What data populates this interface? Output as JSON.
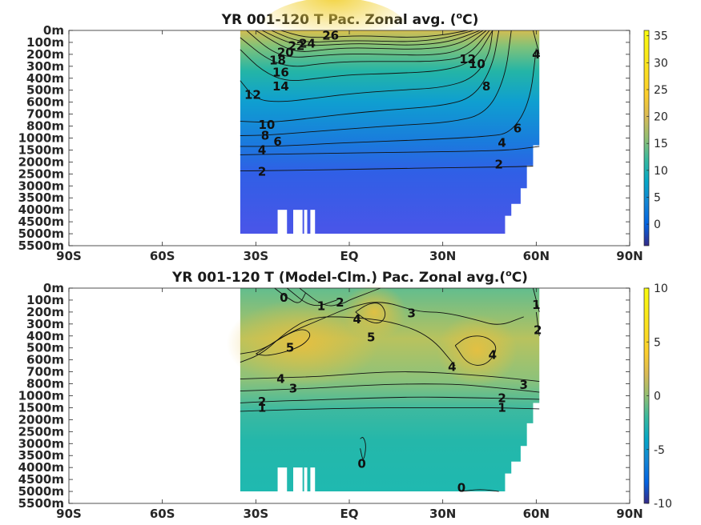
{
  "chart_data": [
    {
      "type": "heatmap",
      "title": "YR 001-120 T Pac. Zonal avg. (",
      "title_sup": "o",
      "title_tail": "C)",
      "x_ticks": [
        "90S",
        "60S",
        "30S",
        "EQ",
        "30N",
        "60N",
        "90N"
      ],
      "x_values": [
        -90,
        -60,
        -30,
        0,
        30,
        60,
        90
      ],
      "y_ticks": [
        "0m",
        "100m",
        "200m",
        "300m",
        "400m",
        "500m",
        "600m",
        "700m",
        "800m",
        "1000m",
        "1500m",
        "2000m",
        "2500m",
        "3000m",
        "3500m",
        "4000m",
        "4500m",
        "5000m",
        "5500m"
      ],
      "data_lat_range": [
        -35,
        61
      ],
      "colorbar": {
        "min": -4,
        "max": 36,
        "ticks": [
          0,
          5,
          10,
          15,
          20,
          25,
          30,
          35
        ]
      },
      "contours": [
        {
          "level": 26,
          "lat": [
            -22,
            -15,
            -8,
            -2,
            4,
            10,
            20,
            30,
            38
          ],
          "depth_index": [
            0,
            0.55,
            0.6,
            0.5,
            0.45,
            0.5,
            0.6,
            0.4,
            0
          ]
        },
        {
          "level": 24,
          "lat": [
            -25,
            -18,
            -12,
            -5,
            2,
            10,
            20,
            30,
            40
          ],
          "depth_index": [
            0,
            0.8,
            1.0,
            0.9,
            0.85,
            0.9,
            0.95,
            0.7,
            0
          ]
        },
        {
          "level": 22,
          "lat": [
            -28,
            -20,
            -14,
            -6,
            2,
            10,
            20,
            32,
            42
          ],
          "depth_index": [
            0,
            1.0,
            1.3,
            1.2,
            1.1,
            1.15,
            1.25,
            1.0,
            0
          ]
        },
        {
          "level": 20,
          "lat": [
            -30,
            -22,
            -16,
            -8,
            0,
            10,
            22,
            34,
            43
          ],
          "depth_index": [
            0,
            1.3,
            1.85,
            1.6,
            1.45,
            1.5,
            1.6,
            1.3,
            0
          ]
        },
        {
          "level": 18,
          "lat": [
            -33,
            -25,
            -18,
            -10,
            0,
            12,
            26,
            36,
            44
          ],
          "depth_index": [
            0,
            1.8,
            2.3,
            2.1,
            1.95,
            2.0,
            2.1,
            1.7,
            0
          ]
        },
        {
          "level": 16,
          "lat": [
            -35,
            -26,
            -18,
            -10,
            0,
            14,
            28,
            38,
            45
          ],
          "depth_index": [
            0.6,
            2.5,
            3.1,
            2.8,
            2.6,
            2.6,
            2.6,
            2.2,
            0
          ]
        },
        {
          "level": 14,
          "lat": [
            -35,
            -28,
            -20,
            -10,
            0,
            14,
            30,
            40,
            46
          ],
          "depth_index": [
            1.6,
            3.4,
            4.3,
            4.0,
            3.7,
            3.6,
            3.4,
            2.6,
            0
          ]
        },
        {
          "level": 12,
          "lat": [
            -35,
            -30,
            -22,
            -12,
            0,
            15,
            30,
            40,
            45,
            46
          ],
          "depth_index": [
            4.2,
            5.8,
            6.0,
            5.7,
            5.3,
            5.0,
            4.8,
            4.0,
            2.0,
            0
          ]
        },
        {
          "level": 10,
          "lat": [
            -35,
            -26,
            -18,
            -8,
            2,
            15,
            30,
            40,
            46,
            48
          ],
          "depth_index": [
            7.6,
            7.7,
            7.5,
            7.2,
            6.9,
            6.6,
            6.3,
            5.6,
            3.0,
            0
          ]
        },
        {
          "level": 8,
          "lat": [
            -35,
            -26,
            -16,
            -6,
            4,
            18,
            32,
            44,
            50,
            52
          ],
          "depth_index": [
            8.8,
            8.75,
            8.55,
            8.35,
            8.15,
            7.9,
            7.7,
            7.0,
            4.0,
            0
          ]
        },
        {
          "level": 6,
          "lat": [
            -35,
            -26,
            -16,
            -6,
            4,
            18,
            32,
            44,
            52,
            58,
            60
          ],
          "depth_index": [
            9.7,
            9.7,
            9.6,
            9.45,
            9.35,
            9.2,
            9.05,
            8.85,
            8.6,
            6.0,
            1.5
          ]
        },
        {
          "level": 4,
          "lat": [
            -35,
            -24,
            -12,
            0,
            14,
            28,
            40,
            52,
            61
          ],
          "depth_index": [
            10.4,
            10.35,
            10.3,
            10.25,
            10.2,
            10.15,
            10.1,
            10.0,
            9.7
          ]
        },
        {
          "level": 2,
          "lat": [
            -35,
            -24,
            -12,
            0,
            14,
            28,
            40,
            52,
            59
          ],
          "depth_index": [
            11.75,
            11.72,
            11.68,
            11.62,
            11.55,
            11.5,
            11.45,
            11.4,
            11.35
          ]
        },
        {
          "level": 4,
          "lat": [
            59,
            60,
            61
          ],
          "depth_index": [
            0.0,
            1.0,
            2.0
          ]
        }
      ],
      "contour_labels": [
        {
          "text": "26",
          "lat": -6,
          "depth_index": 0.45
        },
        {
          "text": "24",
          "lat": -13.5,
          "depth_index": 1.1
        },
        {
          "text": "22",
          "lat": -17,
          "depth_index": 1.3
        },
        {
          "text": "20",
          "lat": -20.5,
          "depth_index": 1.85
        },
        {
          "text": "18",
          "lat": -23,
          "depth_index": 2.5
        },
        {
          "text": "16",
          "lat": -22,
          "depth_index": 3.5
        },
        {
          "text": "14",
          "lat": -22,
          "depth_index": 4.7
        },
        {
          "text": "12",
          "lat": -31,
          "depth_index": 5.4
        },
        {
          "text": "10",
          "lat": -26.5,
          "depth_index": 7.9
        },
        {
          "text": "8",
          "lat": -27,
          "depth_index": 8.8
        },
        {
          "text": "6",
          "lat": -23,
          "depth_index": 9.3
        },
        {
          "text": "4",
          "lat": -28,
          "depth_index": 10.0
        },
        {
          "text": "2",
          "lat": -28,
          "depth_index": 11.8
        },
        {
          "text": "12",
          "lat": 38,
          "depth_index": 2.4
        },
        {
          "text": "10",
          "lat": 41,
          "depth_index": 2.8
        },
        {
          "text": "8",
          "lat": 44,
          "depth_index": 4.7
        },
        {
          "text": "6",
          "lat": 54,
          "depth_index": 8.2
        },
        {
          "text": "4",
          "lat": 49,
          "depth_index": 9.4
        },
        {
          "text": "2",
          "lat": 48,
          "depth_index": 11.2
        },
        {
          "text": "4",
          "lat": 60,
          "depth_index": 2.0
        }
      ]
    },
    {
      "type": "heatmap",
      "title": "YR 001-120 T (Model-Clm.) Pac. Zonal avg.(",
      "title_sup": "o",
      "title_tail": "C)",
      "x_ticks": [
        "90S",
        "60S",
        "30S",
        "EQ",
        "30N",
        "60N",
        "90N"
      ],
      "x_values": [
        -90,
        -60,
        -30,
        0,
        30,
        60,
        90
      ],
      "y_ticks": [
        "0m",
        "100m",
        "200m",
        "300m",
        "400m",
        "500m",
        "600m",
        "700m",
        "800m",
        "1000m",
        "1500m",
        "2000m",
        "2500m",
        "3000m",
        "3500m",
        "4000m",
        "4500m",
        "5000m",
        "5500m"
      ],
      "data_lat_range": [
        -35,
        61
      ],
      "colorbar": {
        "min": -10,
        "max": 10,
        "ticks": [
          -10,
          -5,
          0,
          5,
          10
        ]
      },
      "contours": [
        {
          "level": 0,
          "lat": [
            -24,
            -20,
            -16,
            -14
          ],
          "depth_index": [
            0,
            0.8,
            1.4,
            0.4
          ]
        },
        {
          "level": 1,
          "lat": [
            -20,
            -12,
            -4
          ],
          "depth_index": [
            0,
            1.7,
            1.0
          ]
        },
        {
          "level": 2,
          "lat": [
            -16,
            -8,
            -2,
            0,
            4,
            10
          ],
          "depth_index": [
            0,
            1.6,
            1.3,
            1.0,
            0.6,
            0
          ]
        },
        {
          "level": 3,
          "lat": [
            -35,
            -28,
            -20,
            -8,
            0,
            10,
            22,
            30,
            40,
            48,
            56
          ],
          "depth_index": [
            5.5,
            5.2,
            3.8,
            2.5,
            1.6,
            1.0,
            2.0,
            2.0,
            2.6,
            3.2,
            2.4
          ]
        },
        {
          "level": 4,
          "lat": [
            -35,
            -28,
            -20,
            -12,
            0,
            14,
            26,
            34
          ],
          "depth_index": [
            6.2,
            5.5,
            3.6,
            2.4,
            2.4,
            2.8,
            4.0,
            6.5
          ]
        },
        {
          "level": 5,
          "lat": [
            -30,
            -24,
            -18,
            -14,
            -12,
            -16,
            -26,
            -30
          ],
          "depth_index": [
            5.5,
            4.5,
            3.6,
            3.4,
            4.0,
            5.0,
            5.7,
            5.5
          ]
        },
        {
          "level": 5,
          "lat": [
            2,
            6,
            10,
            12,
            10,
            6,
            2
          ],
          "depth_index": [
            2.0,
            1.3,
            1.2,
            2.2,
            3.0,
            2.8,
            2.0
          ]
        },
        {
          "level": 4,
          "lat": [
            34,
            38,
            44,
            48,
            44,
            38,
            34
          ],
          "depth_index": [
            4.8,
            4.0,
            4.0,
            5.0,
            6.5,
            6.4,
            4.8
          ]
        },
        {
          "level": 4,
          "lat": [
            -35,
            -24,
            -10,
            0,
            12,
            24,
            36,
            46,
            54,
            61
          ],
          "depth_index": [
            7.6,
            7.5,
            7.4,
            7.2,
            7.0,
            7.0,
            7.2,
            7.4,
            7.6,
            7.8
          ]
        },
        {
          "level": 3,
          "lat": [
            -35,
            -24,
            -10,
            0,
            12,
            24,
            36,
            46,
            54,
            61
          ],
          "depth_index": [
            8.6,
            8.5,
            8.35,
            8.2,
            8.05,
            8.0,
            8.05,
            8.3,
            8.5,
            8.7
          ]
        },
        {
          "level": 2,
          "lat": [
            -35,
            -24,
            -10,
            0,
            12,
            24,
            36,
            46,
            54,
            61
          ],
          "depth_index": [
            9.6,
            9.45,
            9.35,
            9.25,
            9.15,
            9.1,
            9.15,
            9.2,
            9.25,
            9.3
          ]
        },
        {
          "level": 1,
          "lat": [
            -35,
            -24,
            -10,
            0,
            12,
            24,
            36,
            46,
            54,
            61
          ],
          "depth_index": [
            10.3,
            10.2,
            10.1,
            10.05,
            10.0,
            10.0,
            10.0,
            10.0,
            10.05,
            10.1
          ]
        },
        {
          "level": 1,
          "lat": [
            59,
            60,
            61
          ],
          "depth_index": [
            0.0,
            1.0,
            2.0
          ]
        },
        {
          "level": 2,
          "lat": [
            60,
            60.5,
            61
          ],
          "depth_index": [
            2.0,
            3.0,
            4.0
          ]
        },
        {
          "level": 0,
          "lat": [
            3.5,
            4.5,
            5.5,
            4.5,
            3.5
          ],
          "depth_index": [
            12.6,
            12.4,
            13.2,
            14.6,
            13.4
          ]
        },
        {
          "level": 0,
          "lat": [
            36,
            42,
            48
          ],
          "depth_index": [
            17.0,
            16.8,
            17.0
          ]
        }
      ],
      "contour_labels": [
        {
          "text": "0",
          "lat": -21,
          "depth_index": 0.8
        },
        {
          "text": "1",
          "lat": -9,
          "depth_index": 1.5
        },
        {
          "text": "2",
          "lat": -3,
          "depth_index": 1.2
        },
        {
          "text": "4",
          "lat": 2.5,
          "depth_index": 2.6
        },
        {
          "text": "3",
          "lat": 20,
          "depth_index": 2.1
        },
        {
          "text": "5",
          "lat": -19,
          "depth_index": 5.0
        },
        {
          "text": "5",
          "lat": 7,
          "depth_index": 4.1
        },
        {
          "text": "4",
          "lat": -22,
          "depth_index": 7.6
        },
        {
          "text": "3",
          "lat": -18,
          "depth_index": 8.4
        },
        {
          "text": "2",
          "lat": -28,
          "depth_index": 9.5
        },
        {
          "text": "1",
          "lat": -28,
          "depth_index": 10.0
        },
        {
          "text": "4",
          "lat": 33,
          "depth_index": 6.6
        },
        {
          "text": "4",
          "lat": 46,
          "depth_index": 5.6
        },
        {
          "text": "3",
          "lat": 56,
          "depth_index": 8.1
        },
        {
          "text": "2",
          "lat": 49,
          "depth_index": 9.2
        },
        {
          "text": "1",
          "lat": 49,
          "depth_index": 10.0
        },
        {
          "text": "1",
          "lat": 60,
          "depth_index": 1.4
        },
        {
          "text": "2",
          "lat": 60.5,
          "depth_index": 3.5
        },
        {
          "text": "0",
          "lat": 4,
          "depth_index": 14.7
        },
        {
          "text": "0",
          "lat": 36,
          "depth_index": 16.7
        }
      ]
    }
  ]
}
